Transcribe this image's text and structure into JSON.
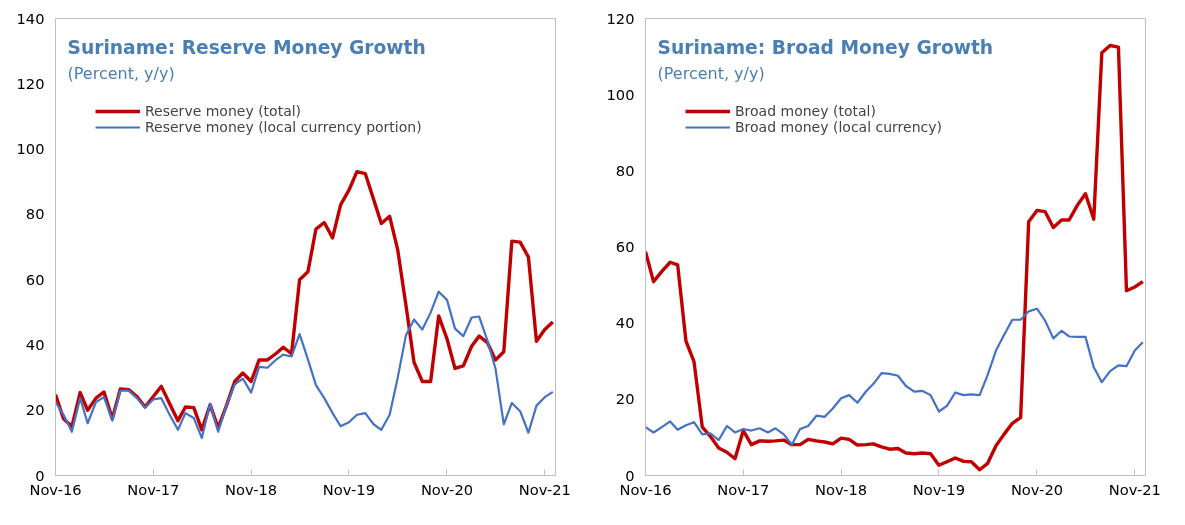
{
  "chart_data": [
    {
      "type": "line",
      "title": "Suriname: Reserve Money Growth",
      "subtitle": "(Percent, y/y)",
      "x": [
        "2016-11",
        "2016-12",
        "2017-01",
        "2017-02",
        "2017-03",
        "2017-04",
        "2017-05",
        "2017-06",
        "2017-07",
        "2017-08",
        "2017-09",
        "2017-10",
        "2017-11",
        "2017-12",
        "2018-01",
        "2018-02",
        "2018-03",
        "2018-04",
        "2018-05",
        "2018-06",
        "2018-07",
        "2018-08",
        "2018-09",
        "2018-10",
        "2018-11",
        "2018-12",
        "2019-01",
        "2019-02",
        "2019-03",
        "2019-04",
        "2019-05",
        "2019-06",
        "2019-07",
        "2019-08",
        "2019-09",
        "2019-10",
        "2019-11",
        "2019-12",
        "2020-01",
        "2020-02",
        "2020-03",
        "2020-04",
        "2020-05",
        "2020-06",
        "2020-07",
        "2020-08",
        "2020-09",
        "2020-10",
        "2020-11",
        "2020-12",
        "2021-01",
        "2021-02",
        "2021-03",
        "2021-04",
        "2021-05",
        "2021-06",
        "2021-07",
        "2021-08",
        "2021-09",
        "2021-10",
        "2021-11",
        "2021-12"
      ],
      "series": [
        {
          "name": "Reserve money (total)",
          "color": "#c00000",
          "values": [
            24.8,
            17.4,
            15,
            25.4,
            20,
            23.7,
            25.6,
            17.4,
            26.5,
            26.3,
            24.2,
            21,
            24.2,
            27.3,
            22,
            16.8,
            21,
            20.8,
            14,
            21.7,
            14.6,
            21.4,
            28.8,
            31.4,
            28.8,
            35.4,
            35.4,
            37.3,
            39.3,
            37.3,
            60,
            62.4,
            75.5,
            77.5,
            72.8,
            82.9,
            87.4,
            93.1,
            92.5,
            84.6,
            77.2,
            79.4,
            69.2,
            52.1,
            34.7,
            28.8,
            28.8,
            48.9,
            41.9,
            32.8,
            33.6,
            39.6,
            42.7,
            40.7,
            35.4,
            37.9,
            71.8,
            71.5,
            66.9,
            41.1,
            44.7,
            47
          ]
        },
        {
          "name": "Reserve money (local currency portion)",
          "color": "#4472c4",
          "values": [
            22.5,
            18.6,
            13.4,
            23.7,
            16,
            22.5,
            24,
            16.8,
            26,
            26,
            23.7,
            20.8,
            23.3,
            23.7,
            18.6,
            14,
            19.1,
            17.6,
            11.5,
            22,
            13.4,
            21.4,
            27.9,
            29.7,
            25.4,
            33.3,
            33,
            35.4,
            37,
            36.5,
            43.3,
            35.6,
            27.7,
            23.7,
            19.1,
            15.1,
            16.3,
            18.6,
            19.1,
            15.7,
            14,
            18.6,
            29.9,
            43,
            47.8,
            44.7,
            49.9,
            56.3,
            53.8,
            45,
            42.7,
            48.4,
            48.7,
            41.3,
            32.8,
            15.7,
            22.2,
            19.7,
            13.1,
            21.4,
            24,
            25.6
          ]
        }
      ],
      "xlim": [
        "2016-11",
        "2021-12"
      ],
      "xticks": [
        {
          "value": "2016-11",
          "label": "Nov-16"
        },
        {
          "value": "2017-11",
          "label": "Nov-17"
        },
        {
          "value": "2018-11",
          "label": "Nov-18"
        },
        {
          "value": "2019-11",
          "label": "Nov-19"
        },
        {
          "value": "2020-11",
          "label": "Nov-20"
        },
        {
          "value": "2021-11",
          "label": "Nov-21"
        }
      ],
      "ylim": [
        0,
        140
      ],
      "yticks": [
        0,
        20,
        40,
        60,
        80,
        100,
        120,
        140
      ],
      "grid": false,
      "legend": "top left",
      "line_style": "solid",
      "marker": "none"
    },
    {
      "type": "line",
      "title": "Suriname: Broad Money Growth",
      "subtitle": "(Percent, y/y)",
      "x": [
        "2016-11",
        "2016-12",
        "2017-01",
        "2017-02",
        "2017-03",
        "2017-04",
        "2017-05",
        "2017-06",
        "2017-07",
        "2017-08",
        "2017-09",
        "2017-10",
        "2017-11",
        "2017-12",
        "2018-01",
        "2018-02",
        "2018-03",
        "2018-04",
        "2018-05",
        "2018-06",
        "2018-07",
        "2018-08",
        "2018-09",
        "2018-10",
        "2018-11",
        "2018-12",
        "2019-01",
        "2019-02",
        "2019-03",
        "2019-04",
        "2019-05",
        "2019-06",
        "2019-07",
        "2019-08",
        "2019-09",
        "2019-10",
        "2019-11",
        "2019-12",
        "2020-01",
        "2020-02",
        "2020-03",
        "2020-04",
        "2020-05",
        "2020-06",
        "2020-07",
        "2020-08",
        "2020-09",
        "2020-10",
        "2020-11",
        "2020-12",
        "2021-01",
        "2021-02",
        "2021-03",
        "2021-04",
        "2021-05",
        "2021-06",
        "2021-07",
        "2021-08",
        "2021-09",
        "2021-10",
        "2021-11",
        "2021-12"
      ],
      "series": [
        {
          "name": "Broad money (total)",
          "color": "#c00000",
          "values": [
            58.8,
            50.9,
            53.6,
            56,
            55.3,
            35.3,
            29.9,
            12.7,
            10.3,
            7.2,
            6.1,
            4.4,
            11.8,
            8.1,
            9.1,
            9,
            9.1,
            9.3,
            8.1,
            8.1,
            9.5,
            9.1,
            8.8,
            8.3,
            9.8,
            9.5,
            8,
            8.1,
            8.3,
            7.5,
            6.9,
            7.1,
            5.9,
            5.7,
            5.9,
            5.7,
            2.7,
            3.6,
            4.6,
            3.7,
            3.6,
            1.5,
            3.2,
            7.8,
            10.8,
            13.7,
            15.2,
            66.6,
            69.6,
            69.3,
            65.1,
            67.1,
            67.1,
            71,
            74,
            67.3,
            111,
            112.9,
            112.5,
            48.5,
            49.5,
            50.9
          ]
        },
        {
          "name": "Broad money (local currency)",
          "color": "#4472c4",
          "values": [
            12.7,
            11.3,
            12.7,
            14.2,
            12,
            13.2,
            14,
            10.8,
            11.1,
            9.3,
            13,
            11.3,
            12.2,
            11.8,
            12.4,
            11.3,
            12.4,
            10.8,
            8.1,
            12.2,
            13,
            15.7,
            15.4,
            17.6,
            20.3,
            21.1,
            19.1,
            22,
            24,
            26.9,
            26.7,
            26.2,
            23.5,
            22,
            22.2,
            21.1,
            16.8,
            18.3,
            21.8,
            21.1,
            21.3,
            21.1,
            26.4,
            32.8,
            36.9,
            40.9,
            40.9,
            43.1,
            43.8,
            40.7,
            36,
            38,
            36.5,
            36.4,
            36.4,
            28.4,
            24.5,
            27.4,
            28.9,
            28.7,
            32.8,
            35
          ]
        }
      ],
      "xlim": [
        "2016-11",
        "2021-12"
      ],
      "xticks": [
        {
          "value": "2016-11",
          "label": "Nov-16"
        },
        {
          "value": "2017-11",
          "label": "Nov-17"
        },
        {
          "value": "2018-11",
          "label": "Nov-18"
        },
        {
          "value": "2019-11",
          "label": "Nov-19"
        },
        {
          "value": "2020-11",
          "label": "Nov-20"
        },
        {
          "value": "2021-11",
          "label": "Nov-21"
        }
      ],
      "ylim": [
        0,
        120
      ],
      "yticks": [
        0,
        20,
        40,
        60,
        80,
        100,
        120
      ],
      "grid": false,
      "legend": "top left",
      "line_style": "solid",
      "marker": "none"
    }
  ]
}
